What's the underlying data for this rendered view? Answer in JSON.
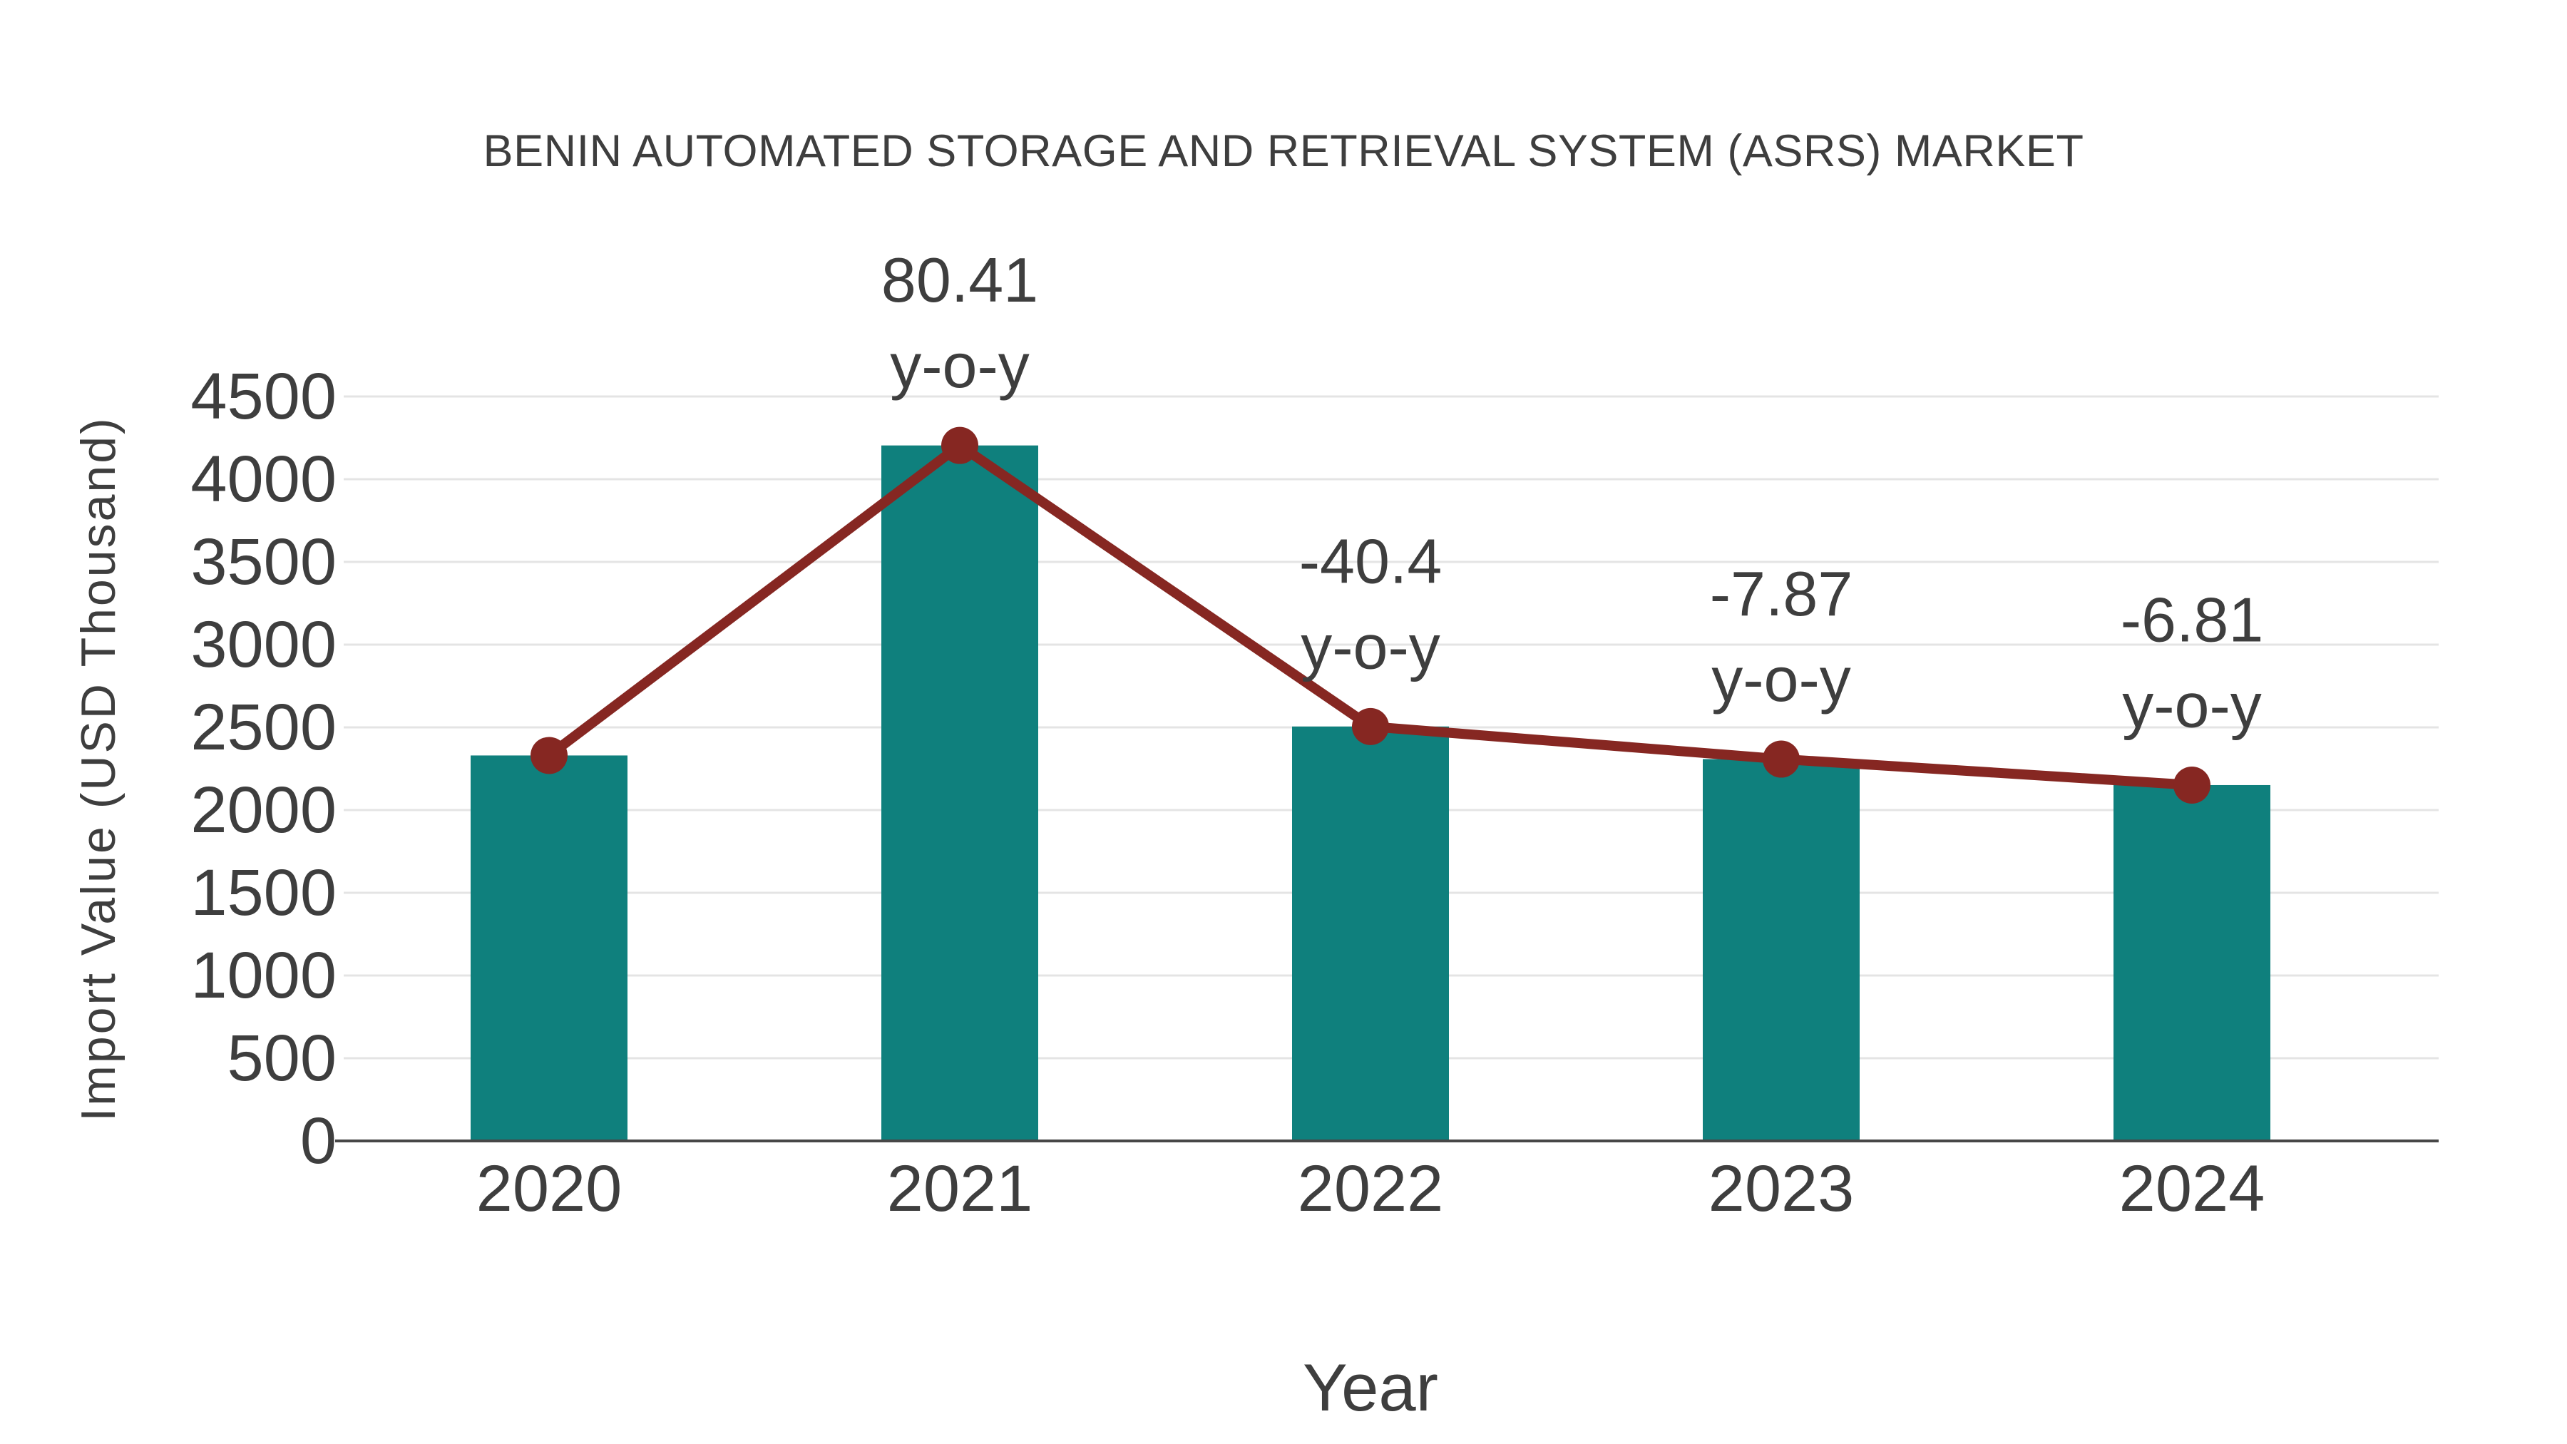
{
  "page": {
    "background_color": "#FFFFFF"
  },
  "chart_data": {
    "type": "bar",
    "title": "BENIN AUTOMATED STORAGE AND RETRIEVAL SYSTEM (ASRS) MARKET",
    "xlabel": "Year",
    "ylabel": "Import Value (USD Thousand)",
    "categories": [
      "2020",
      "2021",
      "2022",
      "2023",
      "2024"
    ],
    "series": [
      {
        "name": "Import Value",
        "type": "bar",
        "values": [
          2330,
          4204,
          2505,
          2308,
          2151
        ]
      },
      {
        "name": "Year-over-year change",
        "type": "line",
        "marks_bar_tops": true,
        "yoy_percent": [
          null,
          80.41,
          -40.4,
          -7.87,
          -6.81
        ]
      }
    ],
    "annotations": [
      {
        "category": "2021",
        "line1": "80.41",
        "line2": "y-o-y"
      },
      {
        "category": "2022",
        "line1": "-40.4",
        "line2": "y-o-y"
      },
      {
        "category": "2023",
        "line1": "-7.87",
        "line2": "y-o-y"
      },
      {
        "category": "2024",
        "line1": "-6.81",
        "line2": "y-o-y"
      }
    ],
    "ylim": [
      0,
      4500
    ],
    "ytick_step": 500,
    "ytick_labels": [
      "0",
      "500",
      "1000",
      "1500",
      "2000",
      "2500",
      "3000",
      "3500",
      "4000",
      "4500"
    ],
    "grid": true,
    "legend": "none",
    "colors": {
      "bar": "#0F807D",
      "line": "#862722",
      "marker": "#862722",
      "text": "#3E3E3E",
      "grid": "#E4E4E4",
      "axis": "#474747"
    }
  }
}
